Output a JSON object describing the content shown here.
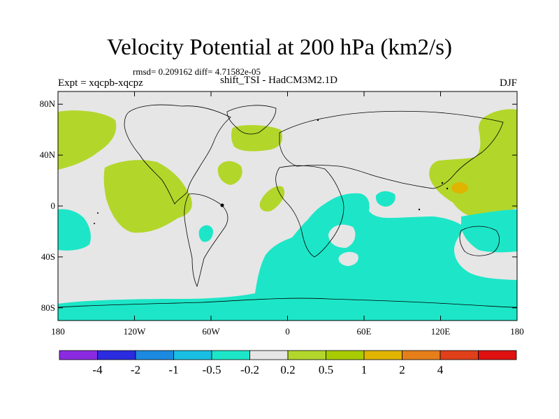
{
  "title": "Velocity Potential at 200 hPa (km2/s)",
  "stats": "rmsd= 0.209162 diff= 4.71582e-05",
  "left_label": "Expt = xqcpb-xqcpz",
  "center_label": "shift_TSI - HadCM3M2.1D",
  "right_label": "DJF",
  "map": {
    "lat_ticks": [
      {
        "value": 80,
        "label": "80N"
      },
      {
        "value": 40,
        "label": "40N"
      },
      {
        "value": 0,
        "label": "0"
      },
      {
        "value": -40,
        "label": "40S"
      },
      {
        "value": -80,
        "label": "80S"
      }
    ],
    "lon_ticks": [
      {
        "value": -180,
        "label": "180"
      },
      {
        "value": -120,
        "label": "120W"
      },
      {
        "value": -60,
        "label": "60W"
      },
      {
        "value": 0,
        "label": "0"
      },
      {
        "value": 60,
        "label": "60E"
      },
      {
        "value": 120,
        "label": "120E"
      },
      {
        "value": 180,
        "label": "180"
      }
    ]
  },
  "colorbar": {
    "colors": [
      "#8a2be2",
      "#2b2be0",
      "#1c8ae0",
      "#19bfe3",
      "#1de6c8",
      "#e6e6e6",
      "#b3d62b",
      "#a8cc00",
      "#e0b400",
      "#e67f1a",
      "#e0401a",
      "#e01010"
    ],
    "labels": [
      "-4",
      "-2",
      "-1",
      "-0.5",
      "-0.2",
      "0.2",
      "0.5",
      "1",
      "2",
      "4"
    ]
  },
  "colors": {
    "background": "#e6e6e6",
    "positive": "#b3d62b",
    "negative": "#1de6c8",
    "high": "#e0b400"
  }
}
